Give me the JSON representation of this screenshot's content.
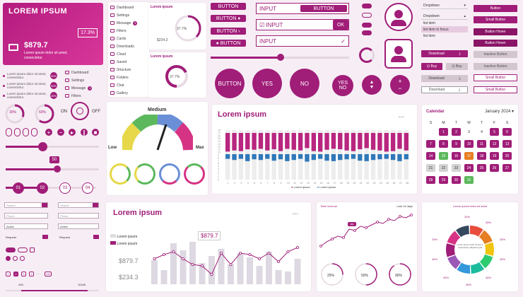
{
  "hero": {
    "title": "LOREM IPSUM",
    "percent": "17.3%",
    "value": "$879.7",
    "subtitle": "Lorem ipsum dolor sit amet, consectetur",
    "icon": "cast-icon"
  },
  "list_left": [
    {
      "text": "Lorem ipsum dolor sit amet, consectetur",
      "badge": "30%"
    },
    {
      "text": "Lorem ipsum dolor sit amet, consectetur",
      "badge": "30%"
    },
    {
      "text": "Lorem ipsum dolor sit amet, consectetur",
      "badge": "30%"
    }
  ],
  "menu1": [
    "Dashboard",
    "Settings",
    "Message",
    "Filters",
    "Cards",
    "Downloads",
    "Cloud",
    "Saved",
    "Structure",
    "Folders",
    "Chat",
    "Gallery"
  ],
  "menu1_badge": "3",
  "menu2": [
    "Dashboard",
    "Settings",
    "Message",
    "Filters"
  ],
  "menu2_badge": "3",
  "widget1": {
    "title": "Lorem ipsum",
    "value": "$234.3",
    "pct": "37.7%"
  },
  "widget2": {
    "title": "Lorem ipsum",
    "pct": "37.7%"
  },
  "buttons": {
    "b1": "BUTTON",
    "b2": "BUTTON",
    "b3": "BUTTON",
    "b4": "BUTTON",
    "b5": "BUTTON"
  },
  "inputs": {
    "i1": "INPUT",
    "i1btn": "BUTTON",
    "i2": "INPUT",
    "i2btn": "OK",
    "i3": "INPUT"
  },
  "round_buttons": {
    "button": "BUTTON",
    "yes": "YES",
    "no": "NO",
    "yes2": "YES",
    "no2": "NO"
  },
  "dropdowns": {
    "d1": "Dropdown",
    "d2": "Dropdown",
    "items": [
      "list item",
      "list item in focus",
      "list item"
    ]
  },
  "side_buttons": {
    "button": "Button",
    "small": "Small Button",
    "hover1": "Button Hover",
    "hover2": "Button Hover",
    "inactive": "Inactive Button",
    "inactive2": "Inactive Button",
    "small2": "Small Button",
    "small3": "Small Button",
    "download1": "Download",
    "buy1": "Buy",
    "buy2": "Buy",
    "download2": "Download",
    "download3": "Download"
  },
  "progress_circles": {
    "c1": "30%",
    "c2": "60%"
  },
  "toggle": {
    "on": "ON",
    "off": "OFF"
  },
  "slider_value": "50",
  "steps": [
    "01",
    "02",
    "03",
    "04"
  ],
  "gauge": {
    "title": "Medium",
    "low": "Low",
    "max": "Max"
  },
  "main_chart": {
    "title": "Lorem ipsum",
    "legend1": "Lorem ipsum",
    "legend2": "Lorem ipsum"
  },
  "chart_data": {
    "type": "bar",
    "categories": [
      "1",
      "2",
      "3",
      "4",
      "5",
      "6",
      "7",
      "8",
      "9",
      "10",
      "11",
      "12",
      "13",
      "14",
      "15",
      "16",
      "17",
      "18",
      "19",
      "20",
      "21",
      "22",
      "23",
      "24",
      "25",
      "26",
      "27",
      "28"
    ],
    "y_ticks": [
      "18",
      "17",
      "16",
      "15",
      "14",
      "13",
      "12",
      "11",
      "10",
      "9",
      "8",
      "7",
      "6",
      "5",
      "4",
      "3",
      "2",
      "1",
      "0"
    ],
    "series": [
      {
        "name": "Lorem ipsum",
        "values": [
          8,
          7.5,
          7.8,
          7,
          7.2,
          6.8,
          7.5,
          7,
          7.8,
          6.8,
          7.2,
          7.5,
          6.5,
          7.8,
          8,
          7.2,
          6.8,
          7,
          7.5,
          7.8,
          7,
          6.5,
          7.2,
          7.5,
          8,
          7.8,
          6.8,
          7.5
        ]
      },
      {
        "name": "Lorem ipsum",
        "values": [
          2,
          2.5,
          2,
          3,
          2.2,
          2.5,
          2,
          2.8,
          2.2,
          3,
          2.5,
          2,
          3.2,
          2.5,
          2,
          2.8,
          3,
          2.5,
          2.2,
          2,
          2.8,
          3,
          2.5,
          2.2,
          2,
          2.5,
          3,
          2.2
        ]
      }
    ],
    "colors": [
      "#b8267f",
      "#2f78b9"
    ]
  },
  "calendar": {
    "title": "Calendar",
    "month": "January 2024",
    "days": [
      "S",
      "M",
      "T",
      "W",
      "T",
      "F",
      "S"
    ],
    "dates": [
      "",
      "1",
      "2",
      "3",
      "4",
      "5",
      "6",
      "7",
      "8",
      "9",
      "10",
      "11",
      "12",
      "13",
      "14",
      "15",
      "16",
      "17",
      "18",
      "19",
      "20",
      "21",
      "22",
      "23",
      "24",
      "25",
      "26",
      "27",
      "28",
      "29",
      "30",
      "31"
    ]
  },
  "search_fields": [
    "Search",
    "Search",
    "Phone",
    "Phone",
    "Active",
    "Active",
    "Request",
    "Request"
  ],
  "bottom_chart": {
    "title": "Lorem ipsum",
    "legend1": "Lorem ipsum",
    "legend2": "Lorem ipsum",
    "value1": "$879.7",
    "value2": "$234.3",
    "callout": "$879.7"
  },
  "line_chart": {
    "title": "Total revenue",
    "legend": "Last 14 days",
    "callout": "$$$"
  },
  "bottom_circles": [
    "25%",
    "50%",
    "90%"
  ],
  "donut": {
    "title": "Lorem ipsum dolor sit amet",
    "labels": [
      "25%",
      "45%",
      "35%",
      "45%",
      "45%",
      "35%",
      "45%",
      "45%",
      "25%"
    ],
    "center": "Lorem ipsum dolor sit amet, consectetur adipiscing elit"
  },
  "slider_range": {
    "min": "435",
    "max": "10445"
  },
  "pagination": [
    "1",
    "2",
    "3",
    "4",
    "...",
    "100"
  ]
}
